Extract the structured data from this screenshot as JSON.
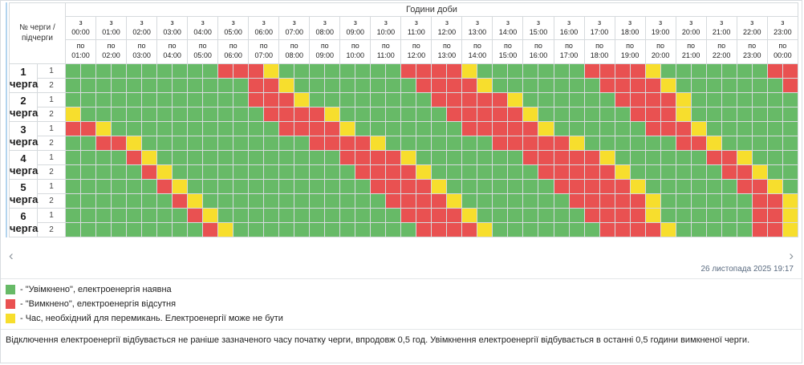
{
  "colors": {
    "on": "#67ba67",
    "off": "#e95151",
    "maybe": "#f7de2d"
  },
  "header": {
    "corner": "№ черги / підчерги",
    "hours_title": "Години доби",
    "columns": [
      {
        "from": "з 00:00",
        "to": "по 01:00"
      },
      {
        "from": "з 01:00",
        "to": "по 02:00"
      },
      {
        "from": "з 02:00",
        "to": "по 03:00"
      },
      {
        "from": "з 03:00",
        "to": "по 04:00"
      },
      {
        "from": "з 04:00",
        "to": "по 05:00"
      },
      {
        "from": "з 05:00",
        "to": "по 06:00"
      },
      {
        "from": "з 06:00",
        "to": "по 07:00"
      },
      {
        "from": "з 07:00",
        "to": "по 08:00"
      },
      {
        "from": "з 08:00",
        "to": "по 09:00"
      },
      {
        "from": "з 09:00",
        "to": "по 10:00"
      },
      {
        "from": "з 10:00",
        "to": "по 11:00"
      },
      {
        "from": "з 11:00",
        "to": "по 12:00"
      },
      {
        "from": "з 12:00",
        "to": "по 13:00"
      },
      {
        "from": "з 13:00",
        "to": "по 14:00"
      },
      {
        "from": "з 14:00",
        "to": "по 15:00"
      },
      {
        "from": "з 15:00",
        "to": "по 16:00"
      },
      {
        "from": "з 16:00",
        "to": "по 17:00"
      },
      {
        "from": "з 17:00",
        "to": "по 18:00"
      },
      {
        "from": "з 18:00",
        "to": "по 19:00"
      },
      {
        "from": "з 19:00",
        "to": "по 20:00"
      },
      {
        "from": "з 20:00",
        "to": "по 21:00"
      },
      {
        "from": "з 21:00",
        "to": "по 22:00"
      },
      {
        "from": "з 22:00",
        "to": "по 23:00"
      },
      {
        "from": "з 23:00",
        "to": "по 00:00"
      }
    ]
  },
  "chart_data": {
    "type": "heatmap",
    "title": "Години доби",
    "x_unit": "half-hour slots 00:00-24:00 (48 per row)",
    "legend_position": "bottom",
    "cell_states": {
      "G": "Увімкнено, електроенергія наявна",
      "R": "Вимкнено, електроенергія відсутня",
      "Y": "Час, необхідний для перемикань. Електроенергії може не бути"
    },
    "rows": [
      {
        "queue": "1 черга",
        "subqueue": "1",
        "cells": "GGGGGGGGGGRRRYGGGGGGGGRRRRYGGGGGGGRRRRYGGGGGGGRR"
      },
      {
        "queue": "1 черга",
        "subqueue": "2",
        "cells": "GGGGGGGGGGGGRRYGGGGGGGGRRRRYGGGGGGGRRRRYGGGGGGGR"
      },
      {
        "queue": "2 черга",
        "subqueue": "1",
        "cells": "GGGGGGGGGGGGRRRYGGGGGGGGRRRRRYGGGGGGRRRRYGGGGGGG"
      },
      {
        "queue": "2 черга",
        "subqueue": "2",
        "cells": "YGGGGGGGGGGGGRRRRYGGGGGGGRRRRRYGGGGGGRRRYGGGGGGG"
      },
      {
        "queue": "3 черга",
        "subqueue": "1",
        "cells": "RRYGGGGGGGGGGGRRRRYGGGGGGGRRRRRYGGGGGGRRRYGGGGGG"
      },
      {
        "queue": "3 черга",
        "subqueue": "2",
        "cells": "GGRRYGGGGGGGGGGGRRRRYGGGGGGGRRRRRYGGGGGGRRYGGGGG"
      },
      {
        "queue": "4 черга",
        "subqueue": "1",
        "cells": "GGGGRYGGGGGGGGGGGGRRRRYGGGGGGGRRRRRYGGGGGGRRYGGG"
      },
      {
        "queue": "4 черга",
        "subqueue": "2",
        "cells": "GGGGGRYGGGGGGGGGGGGRRRRYGGGGGGGRRRRRYGGGGGGRRYGG"
      },
      {
        "queue": "5 черга",
        "subqueue": "1",
        "cells": "GGGGGGRYGGGGGGGGGGGGRRRRYGGGGGGGRRRRRYGGGGGGRRYG"
      },
      {
        "queue": "5 черга",
        "subqueue": "2",
        "cells": "GGGGGGGRYGGGGGGGGGGGGRRRRYGGGGGGGRRRRRYGGGGGGRRY"
      },
      {
        "queue": "6 черга",
        "subqueue": "1",
        "cells": "GGGGGGGGRYGGGGGGGGGGGGRRRRYGGGGGGGRRRRYGGGGGGRRY"
      },
      {
        "queue": "6 черга",
        "subqueue": "2",
        "cells": "GGGGGGGGGRYGGGGGGGGGGGGRRRRYGGGGGGGRRRRYGGGGGRRY"
      }
    ]
  },
  "queues": [
    {
      "label": "1 черга",
      "subrows": [
        {
          "num": "1",
          "cells": "GGGGGGGGGGRRRYGGGGGGGGRRRRYGGGGGGGRRRRYGGGGGGGRR"
        },
        {
          "num": "2",
          "cells": "GGGGGGGGGGGGRRYGGGGGGGGRRRRYGGGGGGGRRRRYGGGGGGGR"
        }
      ]
    },
    {
      "label": "2 черга",
      "subrows": [
        {
          "num": "1",
          "cells": "GGGGGGGGGGGGRRRYGGGGGGGGRRRRRYGGGGGGRRRRYGGGGGGG"
        },
        {
          "num": "2",
          "cells": "YGGGGGGGGGGGGRRRRYGGGGGGGRRRRRYGGGGGGRRRYGGGGGGG"
        }
      ]
    },
    {
      "label": "3 черга",
      "subrows": [
        {
          "num": "1",
          "cells": "RRYGGGGGGGGGGGRRRRYGGGGGGGRRRRRYGGGGGGRRRYGGGGGG"
        },
        {
          "num": "2",
          "cells": "GGRRYGGGGGGGGGGGRRRRYGGGGGGGRRRRRYGGGGGGRRYGGGGG"
        }
      ]
    },
    {
      "label": "4 черга",
      "subrows": [
        {
          "num": "1",
          "cells": "GGGGRYGGGGGGGGGGGGRRRRYGGGGGGGRRRRRYGGGGGGRRYGGG"
        },
        {
          "num": "2",
          "cells": "GGGGGRYGGGGGGGGGGGGRRRRYGGGGGGGRRRRRYGGGGGGRRYGG"
        }
      ]
    },
    {
      "label": "5 черга",
      "subrows": [
        {
          "num": "1",
          "cells": "GGGGGGRYGGGGGGGGGGGGRRRRYGGGGGGGRRRRRYGGGGGGRRYG"
        },
        {
          "num": "2",
          "cells": "GGGGGGGRYGGGGGGGGGGGGRRRRYGGGGGGGRRRRRYGGGGGGRRY"
        }
      ]
    },
    {
      "label": "6 черга",
      "subrows": [
        {
          "num": "1",
          "cells": "GGGGGGGGRYGGGGGGGGGGGGRRRRYGGGGGGGRRRRYGGGGGGRRY"
        },
        {
          "num": "2",
          "cells": "GGGGGGGGGRYGGGGGGGGGGGGRRRRYGGGGGGGRRRRYGGGGGRRY"
        }
      ]
    }
  ],
  "pagination": {
    "prev": "‹",
    "next": "›",
    "timestamp": "26 листопада 2025 19:17"
  },
  "legend": [
    {
      "key": "on",
      "text": "- \"Увімкнено\", електроенергія наявна"
    },
    {
      "key": "off",
      "text": "- \"Вимкнено\", електроенергія відсутня"
    },
    {
      "key": "maybe",
      "text": "- Час, необхідний для перемикань. Електроенергії може не бути"
    }
  ],
  "footer": "Відключення електроенергії відбувається не раніше зазначеного часу початку черги, впродовж 0,5 год. Увімкнення електроенергії відбувається в останні 0,5 години вимкненої черги."
}
